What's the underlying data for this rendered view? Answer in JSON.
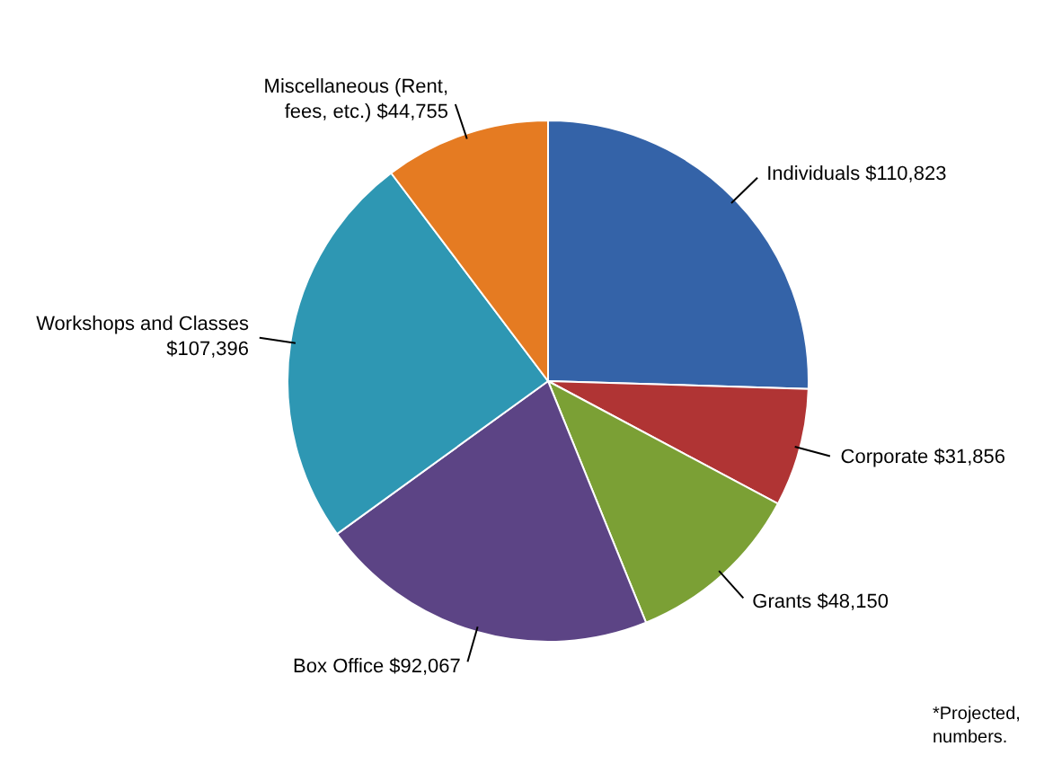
{
  "chart_data": {
    "type": "pie",
    "categories": [
      "Individuals",
      "Corporate",
      "Grants",
      "Box Office",
      "Workshops and Classes",
      "Miscellaneous (Rent, fees, etc.)"
    ],
    "values": [
      110823,
      31856,
      48150,
      92067,
      107396,
      44755
    ],
    "value_labels": [
      "$110,823",
      "$31,856",
      "$48,150",
      "$92,067",
      "$107,396",
      "$44,755"
    ],
    "colors": [
      "#3463a8",
      "#b03434",
      "#7ba035",
      "#5c4485",
      "#2e97b3",
      "#e57b22"
    ],
    "annotations": [
      "*Projected, numbers."
    ]
  }
}
